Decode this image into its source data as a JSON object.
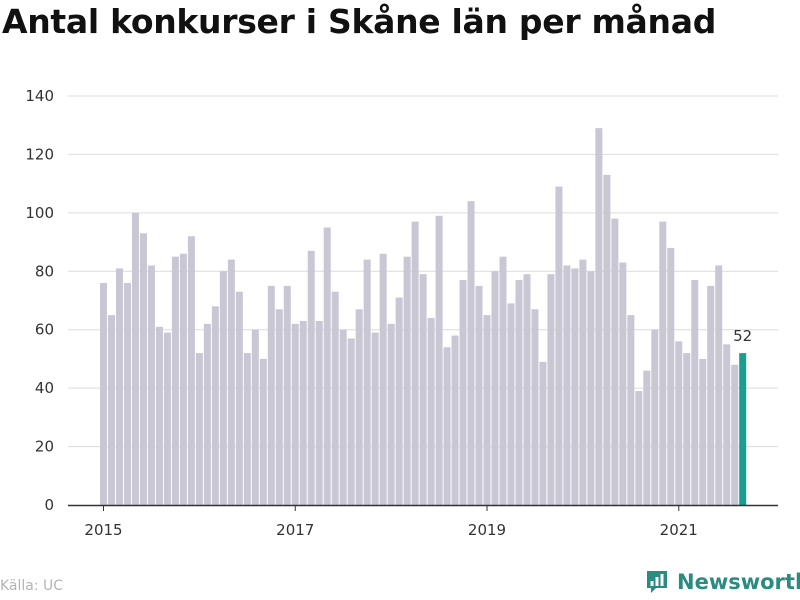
{
  "title": "Antal konkurser i Skåne län per månad",
  "source": "Källa: UC",
  "brand": {
    "name": "Newsworthy",
    "icon": "newsworthy-logo-icon"
  },
  "colors": {
    "bar": "#c8c7d3",
    "highlight": "#1a9e92",
    "grid": "#dcdcdc",
    "axis": "#333333",
    "brand": "#2a8b80"
  },
  "chart_data": {
    "type": "bar",
    "title": "Antal konkurser i Skåne län per månad",
    "xlabel": "",
    "ylabel": "",
    "x_start": "2015-01",
    "x_ticks": [
      {
        "label": "2015",
        "month": "2015-01"
      },
      {
        "label": "2017",
        "month": "2017-01"
      },
      {
        "label": "2019",
        "month": "2019-01"
      },
      {
        "label": "2021",
        "month": "2021-01"
      }
    ],
    "y_ticks": [
      0,
      20,
      40,
      60,
      80,
      100,
      120,
      140
    ],
    "ylim": [
      0,
      140
    ],
    "values": [
      76,
      65,
      81,
      76,
      100,
      93,
      82,
      61,
      59,
      85,
      86,
      92,
      52,
      62,
      68,
      80,
      84,
      73,
      52,
      60,
      50,
      75,
      67,
      75,
      62,
      63,
      87,
      63,
      95,
      73,
      60,
      57,
      67,
      84,
      59,
      86,
      62,
      71,
      85,
      97,
      79,
      64,
      99,
      54,
      58,
      77,
      104,
      75,
      65,
      80,
      85,
      69,
      77,
      79,
      67,
      49,
      79,
      109,
      82,
      81,
      84,
      80,
      129,
      113,
      98,
      83,
      65,
      39,
      46,
      60,
      97,
      88,
      56,
      52,
      77,
      50,
      75,
      82,
      55,
      48,
      52
    ],
    "highlight": {
      "month": "2021-09",
      "value": 52,
      "label": "52"
    },
    "grid": true
  }
}
